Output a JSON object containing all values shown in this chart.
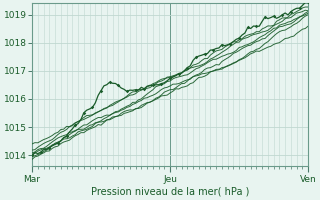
{
  "xlabel": "Pression niveau de la mer( hPa )",
  "x_ticks_labels": [
    "Mar",
    "Jeu",
    "Ven"
  ],
  "x_ticks_pos": [
    0,
    48,
    96
  ],
  "ylim": [
    1013.6,
    1019.4
  ],
  "yticks": [
    1014,
    1015,
    1016,
    1017,
    1018,
    1019
  ],
  "total_points": 97,
  "bg_color": "#e8f4f0",
  "plot_bg_color": "#e8f4f0",
  "line_color": "#1a5c2a",
  "grid_color": "#c0d8d0",
  "border_color": "#6a9a8a",
  "tick_color": "#4a7a6a"
}
